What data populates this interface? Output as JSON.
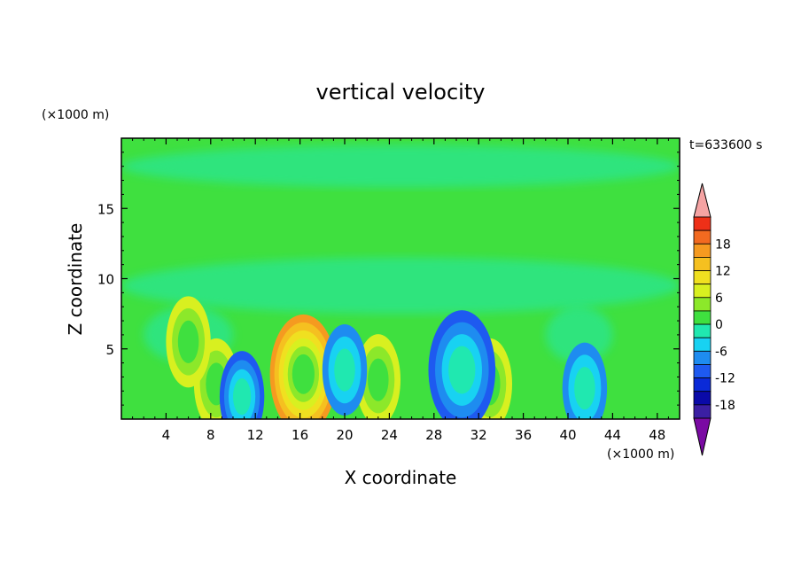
{
  "chart_data": {
    "type": "heatmap",
    "title": "vertical velocity",
    "xlabel": "X coordinate",
    "ylabel": "Z coordinate",
    "x_unit": "(×1000 m)",
    "y_unit": "(×1000 m)",
    "time_label": "t=633600 s",
    "xlim": [
      0,
      50
    ],
    "ylim": [
      0,
      20
    ],
    "x_ticks": [
      "4",
      "8",
      "12",
      "16",
      "20",
      "24",
      "28",
      "32",
      "36",
      "40",
      "44",
      "48"
    ],
    "y_ticks": [
      "5",
      "10",
      "15"
    ],
    "colorbar": {
      "levels": [
        -21,
        -18,
        -15,
        -12,
        -9,
        -6,
        -3,
        0,
        3,
        6,
        9,
        12,
        15,
        18,
        21
      ],
      "tick_labels": [
        "18",
        "12",
        "6",
        "0",
        "-6",
        "-12",
        "-18"
      ],
      "colors": [
        "#7a0aa3",
        "#3b1fa3",
        "#0a0aa8",
        "#0a2ad8",
        "#1e5af0",
        "#1e8cf0",
        "#18d2f2",
        "#20e8b0",
        "#3fe03f",
        "#8ce82a",
        "#d8f020",
        "#f0e020",
        "#f5c020",
        "#f59a20",
        "#f26a20",
        "#ee3018",
        "#f5a3a3"
      ],
      "extend": "both"
    },
    "features": [
      {
        "x": 16.3,
        "z": 3.2,
        "value": 18
      },
      {
        "x": 23.0,
        "z": 2.8,
        "value": 10
      },
      {
        "x": 8.5,
        "z": 2.5,
        "value": 9
      },
      {
        "x": 6.0,
        "z": 5.5,
        "value": 8
      },
      {
        "x": 33.0,
        "z": 2.5,
        "value": 9
      },
      {
        "x": 20.0,
        "z": 3.5,
        "value": -10
      },
      {
        "x": 10.8,
        "z": 1.6,
        "value": -11
      },
      {
        "x": 30.5,
        "z": 3.5,
        "value": -13
      },
      {
        "x": 41.5,
        "z": 2.2,
        "value": -9
      }
    ]
  }
}
